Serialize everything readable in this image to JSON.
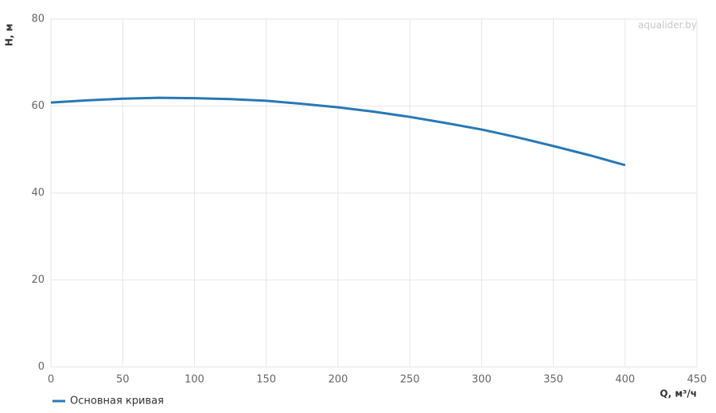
{
  "chart_data": {
    "type": "line",
    "watermark": "aqualider.by",
    "x_label": "Q, м³/ч",
    "y_label": "H, м",
    "x": [
      0,
      25,
      50,
      75,
      100,
      125,
      150,
      175,
      200,
      225,
      250,
      275,
      300,
      325,
      350,
      375,
      400
    ],
    "series": [
      {
        "name": "Основная кривая",
        "color": "#2878b5",
        "values": [
          60.8,
          61.3,
          61.7,
          61.9,
          61.8,
          61.6,
          61.2,
          60.5,
          59.7,
          58.7,
          57.5,
          56.1,
          54.6,
          52.8,
          50.8,
          48.7,
          46.4
        ]
      }
    ],
    "xlim": [
      0,
      450
    ],
    "xticks": [
      0,
      50,
      100,
      150,
      200,
      250,
      300,
      350,
      400,
      450
    ],
    "ylim": [
      0,
      80
    ],
    "yticks": [
      0,
      20,
      40,
      60,
      80
    ],
    "grid": true,
    "legend": "bottom-left"
  }
}
